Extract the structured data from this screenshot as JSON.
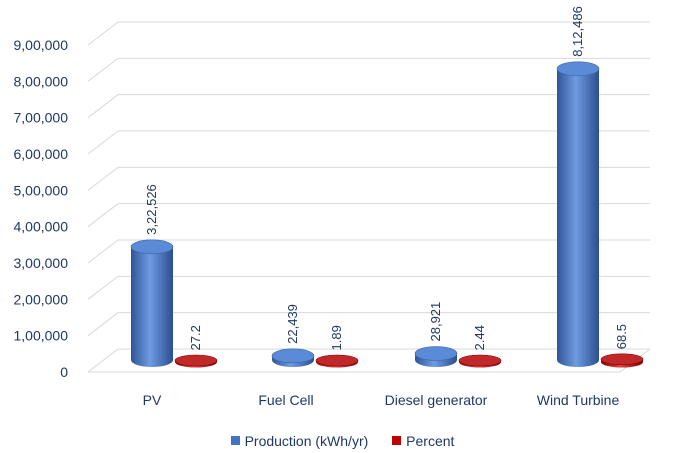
{
  "chart_data": {
    "type": "bar",
    "style": "3d-cylinder",
    "categories": [
      "PV",
      "Fuel Cell",
      "Diesel generator",
      "Wind Turbine"
    ],
    "series": [
      {
        "name": "Production (kWh/yr)",
        "values": [
          322526,
          22439,
          28921,
          812486
        ],
        "labels": [
          "3,22,526",
          "22,439",
          "28,921",
          "8,12,486"
        ],
        "color": "#4472c4"
      },
      {
        "name": "Percent",
        "values": [
          27.2,
          1.89,
          2.44,
          68.5
        ],
        "labels": [
          "27.2",
          "1.89",
          "2.44",
          "68.5"
        ],
        "color": "#c00000"
      }
    ],
    "y_ticks": [
      "0",
      "1,00,000",
      "2,00,000",
      "3,00,000",
      "4,00,000",
      "5,00,000",
      "6,00,000",
      "7,00,000",
      "8,00,000",
      "9,00,000"
    ],
    "ylim": [
      0,
      900000
    ],
    "grid": true,
    "legend_position": "bottom"
  }
}
